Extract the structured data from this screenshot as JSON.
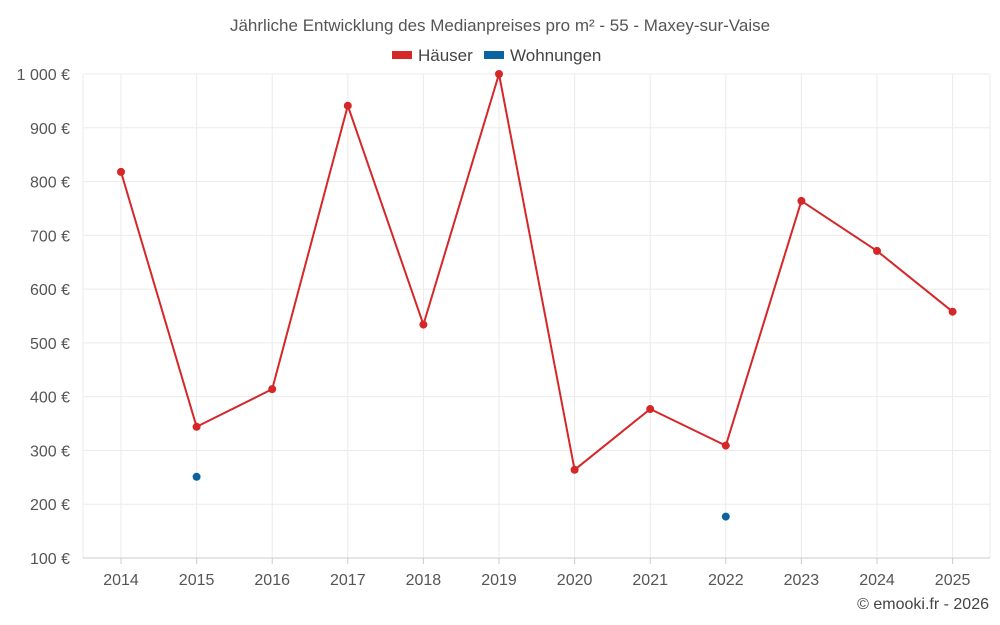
{
  "chart_data": {
    "type": "line",
    "title": "Jährliche Entwicklung des Medianpreises pro m² - 55 - Maxey-sur-Vaise",
    "categories": [
      "2014",
      "2015",
      "2016",
      "2017",
      "2018",
      "2019",
      "2020",
      "2021",
      "2022",
      "2023",
      "2024",
      "2025"
    ],
    "y_tick_labels": [
      "100 €",
      "200 €",
      "300 €",
      "400 €",
      "500 €",
      "600 €",
      "700 €",
      "800 €",
      "900 €",
      "1 000 €"
    ],
    "y_ticks": [
      100,
      200,
      300,
      400,
      500,
      600,
      700,
      800,
      900,
      1000
    ],
    "ylim": [
      100,
      1000
    ],
    "grid": true,
    "legend_position": "top-center",
    "series": [
      {
        "name": "Häuser",
        "color": "#d62728",
        "values": [
          818,
          344,
          414,
          941,
          534,
          1000,
          264,
          377,
          309,
          764,
          671,
          558
        ]
      },
      {
        "name": "Wohnungen",
        "color": "#0b64a0",
        "values": [
          null,
          251,
          null,
          null,
          null,
          null,
          null,
          null,
          177,
          null,
          null,
          null
        ]
      }
    ]
  },
  "credit": "© emooki.fr - 2026"
}
